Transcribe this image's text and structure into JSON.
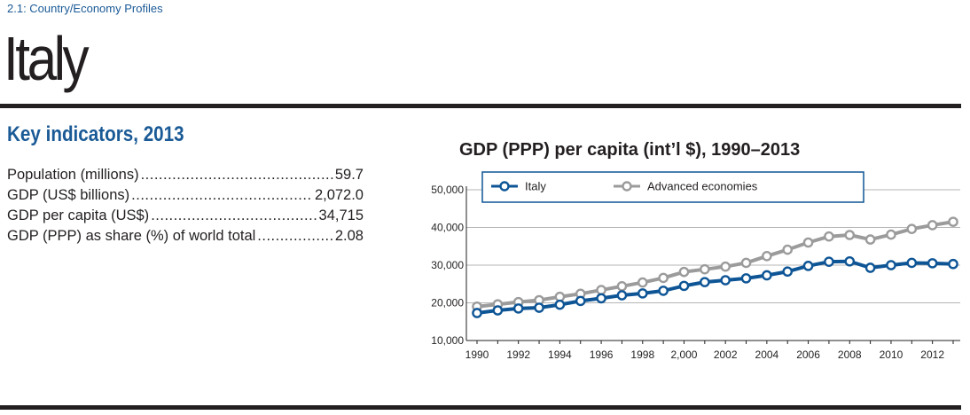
{
  "header": {
    "breadcrumb": "2.1: Country/Economy Profiles",
    "country": "Italy"
  },
  "key_indicators": {
    "heading": "Key indicators, 2013",
    "items": [
      {
        "label": "Population (millions)",
        "value": "59.7"
      },
      {
        "label": "GDP (US$ billions)",
        "value": "2,072.0"
      },
      {
        "label": "GDP per capita (US$)",
        "value": "34,715"
      },
      {
        "label": "GDP (PPP) as share (%) of world total",
        "value": "2.08"
      }
    ]
  },
  "colors": {
    "brand_blue": "#1a5a96",
    "italy": "#0e5596",
    "advanced": "#9b9b9b",
    "rule": "#231f20"
  },
  "chart_data": {
    "type": "line",
    "title": "GDP (PPP) per capita (int’l $), 1990–2013",
    "xlabel": "",
    "ylabel": "",
    "x": [
      1990,
      1991,
      1992,
      1993,
      1994,
      1995,
      1996,
      1997,
      1998,
      1999,
      2000,
      2001,
      2002,
      2003,
      2004,
      2005,
      2006,
      2007,
      2008,
      2009,
      2010,
      2011,
      2012,
      2013
    ],
    "xtick_labels": [
      "1990",
      "1992",
      "1994",
      "1996",
      "1998",
      "2,000",
      "2002",
      "2004",
      "2006",
      "2008",
      "2010",
      "2012"
    ],
    "ytick_labels": [
      "10,000",
      "20,000",
      "30,000",
      "40,000",
      "50,000"
    ],
    "ylim": [
      10000,
      50000
    ],
    "grid": true,
    "legend_position": "top-left",
    "series": [
      {
        "name": "Italy",
        "color": "#0e5596",
        "values": [
          17300,
          18000,
          18500,
          18700,
          19500,
          20500,
          21200,
          22000,
          22500,
          23200,
          24500,
          25500,
          26000,
          26500,
          27300,
          28300,
          29800,
          30900,
          31000,
          29300,
          30000,
          30600,
          30500,
          30300
        ]
      },
      {
        "name": "Advanced economies",
        "color": "#9b9b9b",
        "values": [
          19000,
          19600,
          20200,
          20700,
          21600,
          22400,
          23400,
          24400,
          25400,
          26600,
          28200,
          28900,
          29600,
          30600,
          32400,
          34100,
          36000,
          37600,
          38000,
          36800,
          38100,
          39600,
          40600,
          41500
        ]
      }
    ]
  }
}
